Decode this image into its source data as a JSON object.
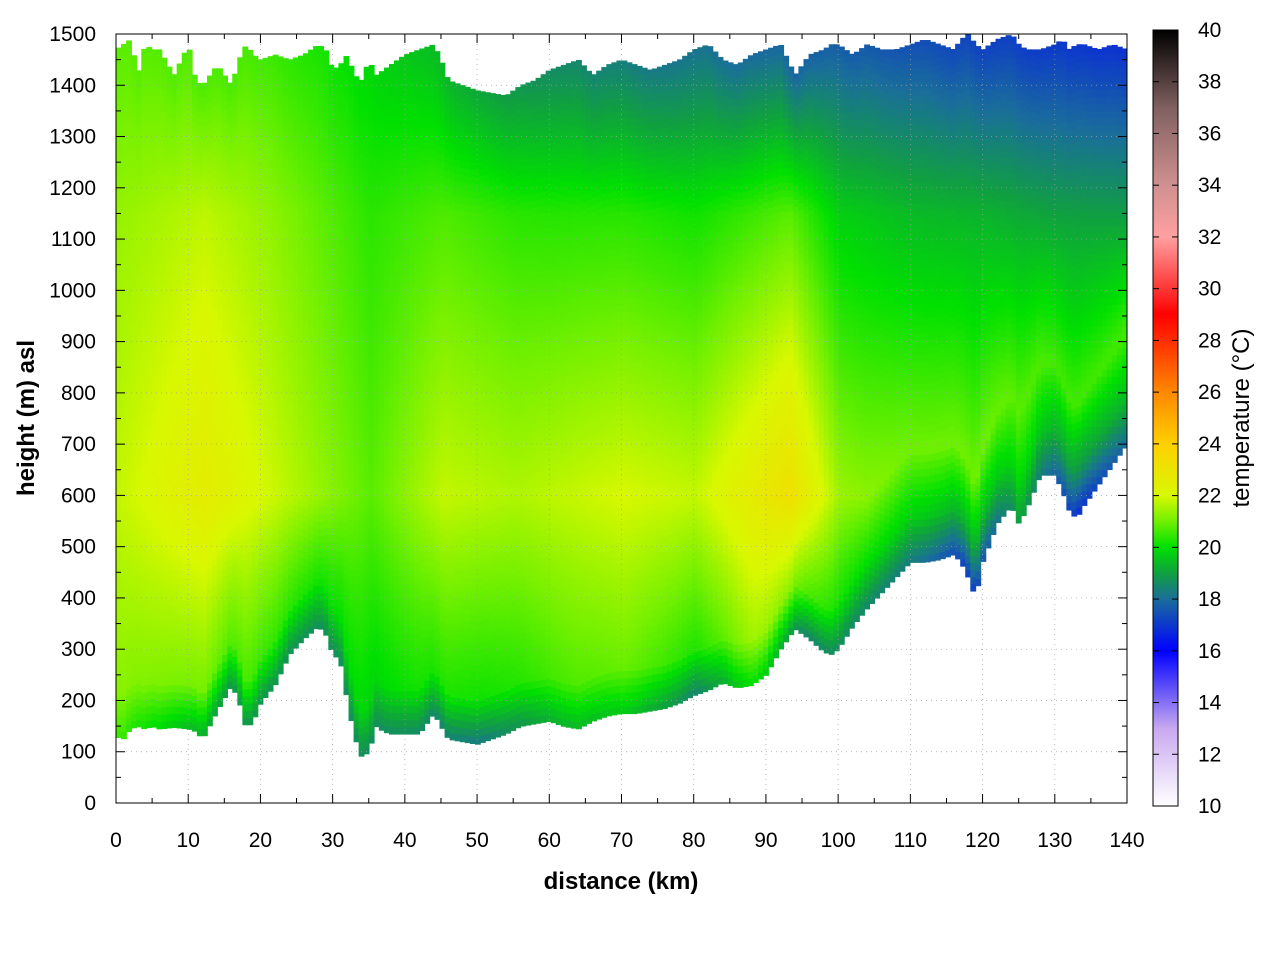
{
  "chart_data": {
    "type": "heatmap",
    "title": "",
    "xlabel": "distance (km)",
    "ylabel": "height (m) asl",
    "colorbar_label": "temperature (°C)",
    "xlim": [
      0,
      140
    ],
    "ylim": [
      0,
      1500
    ],
    "clim": [
      10,
      40
    ],
    "grid": true,
    "x_ticks": [
      0,
      10,
      20,
      30,
      40,
      50,
      60,
      70,
      80,
      90,
      100,
      110,
      120,
      130,
      140
    ],
    "y_ticks": [
      0,
      100,
      200,
      300,
      400,
      500,
      600,
      700,
      800,
      900,
      1000,
      1100,
      1200,
      1300,
      1400,
      1500
    ],
    "colorbar_ticks": [
      10,
      12,
      14,
      16,
      18,
      20,
      22,
      24,
      26,
      28,
      30,
      32,
      34,
      36,
      38,
      40
    ],
    "colormap": [
      {
        "value": 10,
        "color": "#ffffff"
      },
      {
        "value": 13,
        "color": "#c8a8f0"
      },
      {
        "value": 16,
        "color": "#0000ff"
      },
      {
        "value": 18,
        "color": "#1a6e9a"
      },
      {
        "value": 19,
        "color": "#10a040"
      },
      {
        "value": 20,
        "color": "#00e000"
      },
      {
        "value": 21,
        "color": "#70f000"
      },
      {
        "value": 22,
        "color": "#d8f800"
      },
      {
        "value": 24,
        "color": "#ffd000"
      },
      {
        "value": 26,
        "color": "#ff8800"
      },
      {
        "value": 29,
        "color": "#ff0000"
      },
      {
        "value": 32,
        "color": "#ffa0a0"
      },
      {
        "value": 34,
        "color": "#d09090"
      },
      {
        "value": 37,
        "color": "#806060"
      },
      {
        "value": 40,
        "color": "#000000"
      }
    ],
    "terrain": {
      "distance_km": [
        0,
        1,
        2,
        3,
        4,
        5,
        6,
        8,
        10,
        11,
        12,
        14,
        16,
        17,
        18,
        19,
        20,
        22,
        24,
        26,
        28,
        29,
        30,
        31,
        32,
        33,
        34,
        35,
        36,
        37,
        38,
        40,
        42,
        44,
        45,
        46,
        48,
        50,
        52,
        54,
        56,
        58,
        60,
        62,
        64,
        66,
        68,
        70,
        72,
        74,
        76,
        78,
        80,
        82,
        84,
        86,
        88,
        90,
        92,
        94,
        96,
        98,
        99,
        100,
        102,
        104,
        106,
        108,
        110,
        112,
        114,
        116,
        117,
        118,
        119,
        120,
        122,
        124,
        125,
        126,
        128,
        130,
        131,
        132,
        133,
        134,
        136,
        138,
        140
      ],
      "ground_height_m": [
        130,
        125,
        145,
        150,
        145,
        150,
        145,
        148,
        145,
        140,
        125,
        180,
        230,
        200,
        145,
        160,
        195,
        230,
        290,
        320,
        345,
        330,
        290,
        280,
        200,
        130,
        90,
        100,
        150,
        140,
        135,
        135,
        135,
        175,
        150,
        125,
        120,
        115,
        125,
        135,
        150,
        155,
        160,
        150,
        145,
        160,
        170,
        175,
        175,
        180,
        185,
        195,
        210,
        220,
        235,
        225,
        230,
        250,
        300,
        340,
        320,
        295,
        290,
        300,
        345,
        380,
        410,
        440,
        470,
        470,
        475,
        485,
        470,
        440,
        400,
        470,
        545,
        580,
        545,
        570,
        640,
        640,
        610,
        570,
        555,
        580,
        620,
        660,
        700
      ]
    },
    "top_height_m": [
      1470,
      1480,
      1490,
      1420,
      1480,
      1470,
      1470,
      1420,
      1480,
      1410,
      1400,
      1440,
      1400,
      1450,
      1480,
      1460,
      1450,
      1460,
      1450,
      1460,
      1480,
      1470,
      1430,
      1440,
      1460,
      1420,
      1410,
      1450,
      1420,
      1430,
      1440,
      1460,
      1470,
      1480,
      1450,
      1410,
      1400,
      1390,
      1385,
      1380,
      1400,
      1410,
      1430,
      1440,
      1450,
      1420,
      1440,
      1450,
      1440,
      1430,
      1440,
      1450,
      1470,
      1480,
      1450,
      1440,
      1460,
      1470,
      1480,
      1420,
      1460,
      1470,
      1480,
      1480,
      1460,
      1480,
      1470,
      1470,
      1480,
      1490,
      1480,
      1470,
      1490,
      1500,
      1480,
      1470,
      1490,
      1500,
      1480,
      1470,
      1470,
      1480,
      1490,
      1470,
      1480,
      1480,
      1470,
      1480,
      1470
    ],
    "profiles": {
      "ground_temp": [
        {
          "x": 0,
          "t": 20.5
        },
        {
          "x": 15,
          "t": 18.8
        },
        {
          "x": 30,
          "t": 18.6
        },
        {
          "x": 40,
          "t": 18.6
        },
        {
          "x": 50,
          "t": 18.2
        },
        {
          "x": 60,
          "t": 19.2
        },
        {
          "x": 70,
          "t": 19.6
        },
        {
          "x": 80,
          "t": 18.4
        },
        {
          "x": 88,
          "t": 20.0
        },
        {
          "x": 95,
          "t": 18.4
        },
        {
          "x": 100,
          "t": 18.6
        },
        {
          "x": 110,
          "t": 18.2
        },
        {
          "x": 118,
          "t": 17.0
        },
        {
          "x": 125,
          "t": 19.0
        },
        {
          "x": 133,
          "t": 16.8
        },
        {
          "x": 140,
          "t": 18.0
        }
      ],
      "mid_layer_temp": [
        {
          "x": 0,
          "t": 21.8
        },
        {
          "x": 12,
          "t": 22.6
        },
        {
          "x": 25,
          "t": 21.6
        },
        {
          "x": 35,
          "t": 20.8
        },
        {
          "x": 45,
          "t": 21.8
        },
        {
          "x": 55,
          "t": 21.6
        },
        {
          "x": 70,
          "t": 22.0
        },
        {
          "x": 80,
          "t": 21.8
        },
        {
          "x": 93,
          "t": 23.2
        },
        {
          "x": 100,
          "t": 21.4
        },
        {
          "x": 110,
          "t": 21.0
        },
        {
          "x": 120,
          "t": 21.0
        },
        {
          "x": 130,
          "t": 20.6
        },
        {
          "x": 140,
          "t": 20.6
        }
      ],
      "top_temp": [
        {
          "x": 0,
          "t": 20.8
        },
        {
          "x": 20,
          "t": 20.6
        },
        {
          "x": 40,
          "t": 19.6
        },
        {
          "x": 60,
          "t": 18.6
        },
        {
          "x": 75,
          "t": 18.2
        },
        {
          "x": 90,
          "t": 17.9
        },
        {
          "x": 105,
          "t": 17.6
        },
        {
          "x": 120,
          "t": 17.2
        },
        {
          "x": 140,
          "t": 16.9
        }
      ]
    }
  }
}
